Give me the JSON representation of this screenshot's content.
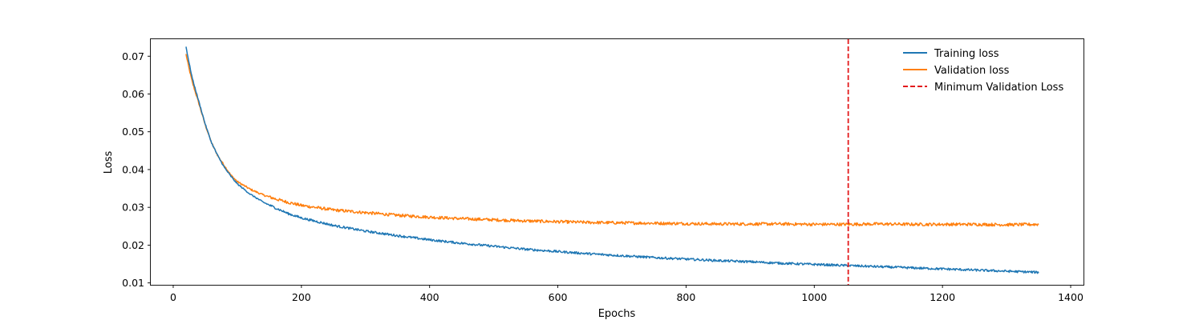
{
  "chart_data": {
    "type": "line",
    "title": "",
    "xlabel": "Epochs",
    "ylabel": "Loss",
    "xlim": [
      -35,
      1420
    ],
    "ylim": [
      0.0095,
      0.0745
    ],
    "xticks": [
      0,
      200,
      400,
      600,
      800,
      1000,
      1200,
      1400
    ],
    "yticks": [
      0.01,
      0.02,
      0.03,
      0.04,
      0.05,
      0.06,
      0.07
    ],
    "tick_labels_x": [
      "0",
      "200",
      "400",
      "600",
      "800",
      "1000",
      "1200",
      "1400"
    ],
    "tick_labels_y": [
      "0.01",
      "0.02",
      "0.03",
      "0.04",
      "0.05",
      "0.06",
      "0.07"
    ],
    "grid": false,
    "legend": {
      "placement": "top-right"
    },
    "series": [
      {
        "name": "Training loss",
        "color": "#1f77b4",
        "noise": 0.0003,
        "x": [
          20,
          25,
          30,
          40,
          50,
          60,
          70,
          80,
          90,
          100,
          120,
          140,
          160,
          180,
          200,
          250,
          300,
          350,
          400,
          450,
          500,
          550,
          600,
          650,
          700,
          750,
          800,
          850,
          900,
          950,
          1000,
          1050,
          1100,
          1150,
          1200,
          1250,
          1300,
          1350
        ],
        "y": [
          0.0725,
          0.068,
          0.064,
          0.058,
          0.052,
          0.047,
          0.0435,
          0.0405,
          0.0382,
          0.0362,
          0.0335,
          0.0314,
          0.0298,
          0.0283,
          0.0272,
          0.0252,
          0.0237,
          0.0225,
          0.0214,
          0.0205,
          0.0197,
          0.0189,
          0.0183,
          0.0177,
          0.0172,
          0.0167,
          0.0163,
          0.0159,
          0.0156,
          0.0152,
          0.0149,
          0.0146,
          0.0143,
          0.014,
          0.0137,
          0.0134,
          0.0131,
          0.0128
        ]
      },
      {
        "name": "Validation loss",
        "color": "#ff7f0e",
        "noise": 0.0004,
        "x": [
          20,
          25,
          30,
          40,
          50,
          60,
          70,
          80,
          90,
          100,
          120,
          140,
          160,
          180,
          200,
          250,
          300,
          350,
          400,
          450,
          500,
          550,
          600,
          650,
          700,
          750,
          800,
          850,
          900,
          950,
          1000,
          1050,
          1100,
          1150,
          1200,
          1250,
          1300,
          1350
        ],
        "y": [
          0.0705,
          0.0665,
          0.063,
          0.0575,
          0.0518,
          0.047,
          0.0435,
          0.041,
          0.0385,
          0.0368,
          0.0348,
          0.0333,
          0.0322,
          0.0313,
          0.0305,
          0.0293,
          0.0286,
          0.0279,
          0.0274,
          0.027,
          0.0267,
          0.0264,
          0.0262,
          0.026,
          0.0259,
          0.0258,
          0.0257,
          0.0256,
          0.0256,
          0.0256,
          0.0255,
          0.0255,
          0.0256,
          0.0255,
          0.0255,
          0.0255,
          0.0254,
          0.0255
        ]
      }
    ],
    "vline": {
      "name": "Minimum Validation Loss",
      "x": 1053,
      "color": "#e31a1c",
      "style": "dashed"
    }
  }
}
